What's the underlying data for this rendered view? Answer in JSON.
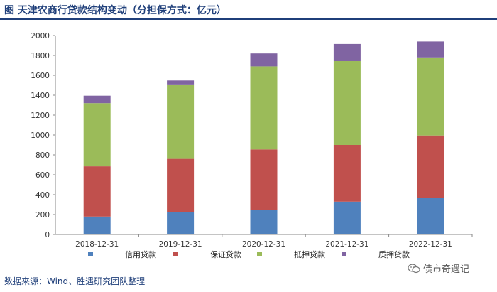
{
  "header": {
    "title": "图   天津农商行贷款结构变动（分担保方式：亿元）"
  },
  "footer": {
    "source": "数据来源：Wind、胜遇研究团队整理",
    "watermark": "债市奇遇记"
  },
  "icons": {
    "watermark_icon": "wechat-icon"
  },
  "chart_data": {
    "type": "bar",
    "stacked": true,
    "categories": [
      "2018-12-31",
      "2019-12-31",
      "2020-12-31",
      "2021-12-31",
      "2022-12-31"
    ],
    "series": [
      {
        "name": "信用贷款",
        "color": "#4f81bd",
        "values": [
          180,
          228,
          245,
          330,
          365
        ]
      },
      {
        "name": "保证贷款",
        "color": "#c0504d",
        "values": [
          505,
          532,
          610,
          570,
          630
        ]
      },
      {
        "name": "抵押贷款",
        "color": "#9bbb59",
        "values": [
          635,
          748,
          835,
          843,
          785
        ]
      },
      {
        "name": "质押贷款",
        "color": "#8064a2",
        "values": [
          75,
          40,
          130,
          172,
          160
        ]
      }
    ],
    "yticks": [
      0,
      200,
      400,
      600,
      800,
      1000,
      1200,
      1400,
      1600,
      1800,
      2000
    ],
    "ylim": [
      0,
      2000
    ],
    "grid": false,
    "legend_position": "bottom"
  }
}
